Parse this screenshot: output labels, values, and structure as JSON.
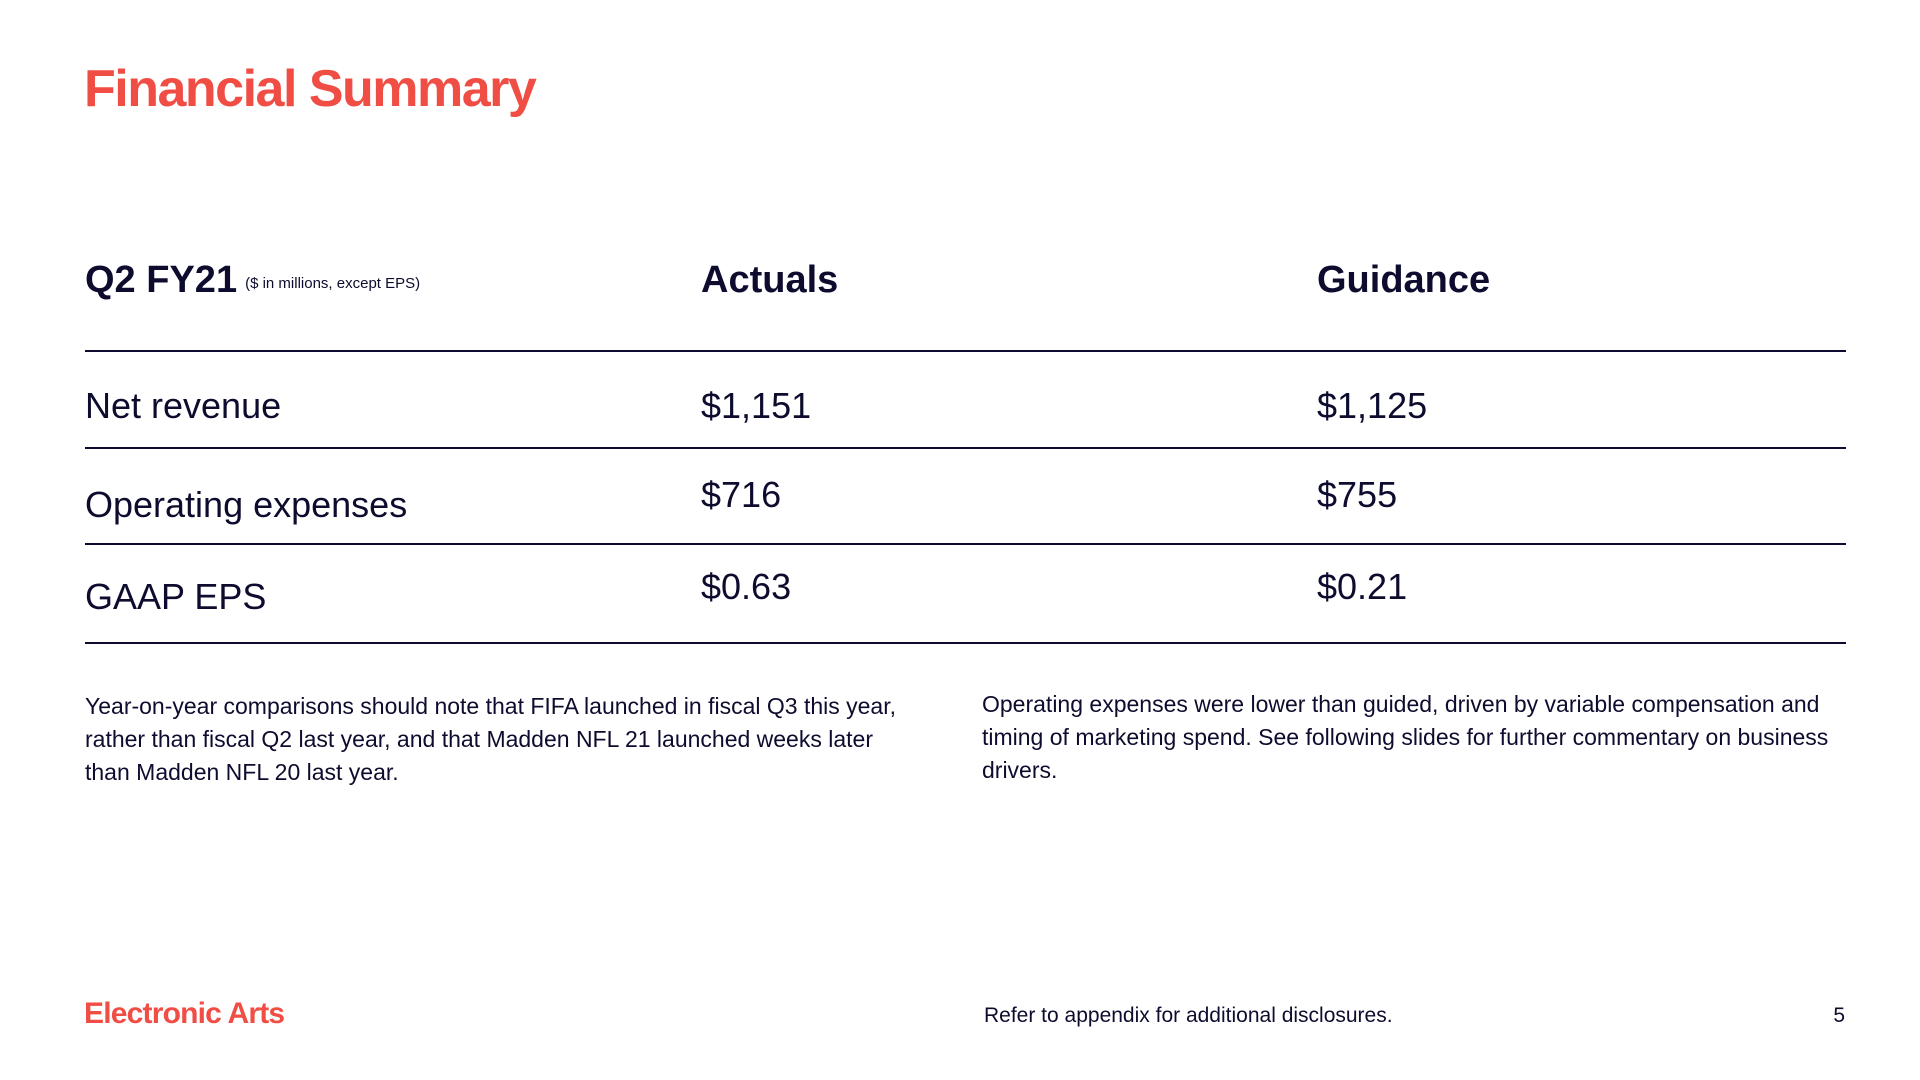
{
  "title": "Financial Summary",
  "table": {
    "period": "Q2 FY21",
    "units_note": "($ in millions, except EPS)",
    "columns": [
      "Actuals",
      "Guidance"
    ],
    "rows": [
      {
        "label": "Net revenue",
        "actual": "$1,151",
        "guidance": "$1,125"
      },
      {
        "label": "Operating expenses",
        "actual": "$716",
        "guidance": "$755"
      },
      {
        "label": "GAAP EPS",
        "actual": "$0.63",
        "guidance": "$0.21"
      }
    ]
  },
  "commentary": {
    "left": "Year-on-year comparisons should note that FIFA launched in fiscal Q3 this year, rather than fiscal Q2 last year, and that Madden NFL 21 launched weeks later than Madden NFL 20 last year.",
    "right": "Operating expenses were lower than guided, driven by variable compensation and timing of marketing spend.  See following slides for further commentary on business drivers."
  },
  "footer": {
    "brand": "Electronic Arts",
    "note": "Refer to appendix for additional disclosures.",
    "page_number": "5"
  },
  "colors": {
    "accent": "#f04e45",
    "text": "#0d0c2e"
  }
}
